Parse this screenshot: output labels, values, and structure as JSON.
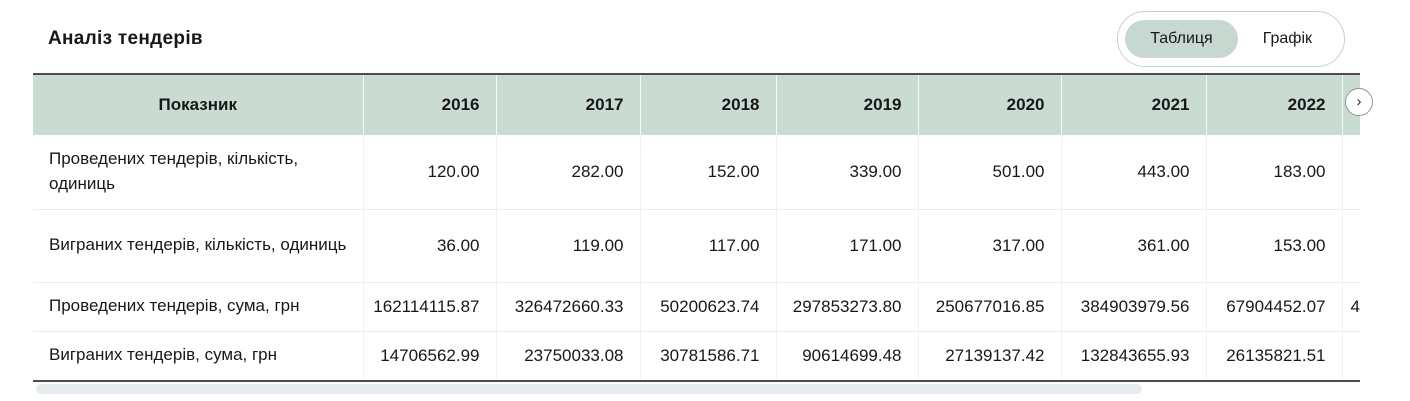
{
  "page": {
    "title": "Аналіз тендерів"
  },
  "toggle": {
    "options": [
      {
        "label": "Таблиця",
        "selected": true
      },
      {
        "label": "Графік",
        "selected": false
      }
    ]
  },
  "table": {
    "columns": [
      "Показник",
      "2016",
      "2017",
      "2018",
      "2019",
      "2020",
      "2021",
      "2022"
    ],
    "rows": [
      {
        "label": "Проведених тендерів, кількість, одиниць",
        "values": [
          "120.00",
          "282.00",
          "152.00",
          "339.00",
          "501.00",
          "443.00",
          "183.00"
        ],
        "partial_next": ""
      },
      {
        "label": "Виграних тендерів, кількість, одиниць",
        "values": [
          "36.00",
          "119.00",
          "117.00",
          "171.00",
          "317.00",
          "361.00",
          "153.00"
        ],
        "partial_next": ""
      },
      {
        "label": "Проведених тендерів, сума, грн",
        "values": [
          "162114115.87",
          "326472660.33",
          "50200623.74",
          "297853273.80",
          "250677016.85",
          "384903979.56",
          "67904452.07"
        ],
        "partial_next": "4"
      },
      {
        "label": "Виграних тендерів, сума, грн",
        "values": [
          "14706562.99",
          "23750033.08",
          "30781586.71",
          "90614699.48",
          "27139137.42",
          "132843655.93",
          "26135821.51"
        ],
        "partial_next": ""
      }
    ]
  },
  "scroll": {
    "next_icon": "›"
  },
  "colors": {
    "header_bg": "#cadbd2",
    "toggle_selected_bg": "#c6d8cf",
    "toggle_border": "#c2d5cb",
    "dark_rule": "#4d4d4d",
    "row_divider": "#e7eee9",
    "scroll_thumb": "#e6ebee",
    "text": "#17181a"
  }
}
